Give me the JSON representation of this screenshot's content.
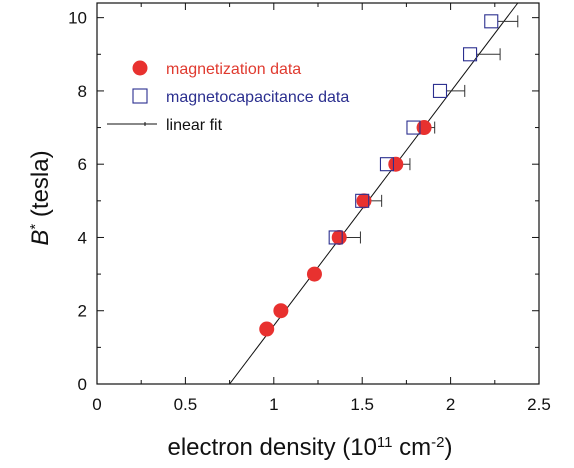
{
  "chart_data": {
    "type": "scatter",
    "xlabel": "electron density (10",
    "xlabel_exp": "11",
    "xlabel_mid": " cm",
    "xlabel_exp2": "-2",
    "xlabel_end": ")",
    "ylabel_var": "B",
    "ylabel_sup": "*",
    "ylabel_rest": " (tesla)",
    "xlim": [
      0,
      2.5
    ],
    "ylim": [
      0,
      10.4
    ],
    "x_ticks": [
      "0",
      "0.5",
      "1",
      "1.5",
      "2",
      "2.5"
    ],
    "y_ticks": [
      "0",
      "2",
      "4",
      "6",
      "8",
      "10"
    ],
    "legend_position": "top-left",
    "grid": false,
    "series": [
      {
        "name": "magnetization data",
        "marker": "filled-circle",
        "color": "#e8312f",
        "x": [
          0.96,
          1.04,
          1.23,
          1.37,
          1.51,
          1.69,
          1.85
        ],
        "y": [
          1.5,
          2.0,
          3.0,
          4.0,
          5.0,
          6.0,
          7.0
        ]
      },
      {
        "name": "magnetocapacitance data",
        "marker": "open-square",
        "color": "#2b2f8f",
        "x": [
          1.35,
          1.5,
          1.64,
          1.79,
          1.94,
          2.11,
          2.23
        ],
        "y": [
          4.0,
          5.0,
          6.0,
          7.0,
          8.0,
          9.0,
          9.9
        ],
        "x_error_plus": [
          0.14,
          0.11,
          0.13,
          0.12,
          0.14,
          0.17,
          0.15
        ]
      },
      {
        "name": "linear fit",
        "marker": "line",
        "color": "#111111",
        "x": [
          0.75,
          2.38
        ],
        "y": [
          0.0,
          10.4
        ]
      }
    ]
  }
}
